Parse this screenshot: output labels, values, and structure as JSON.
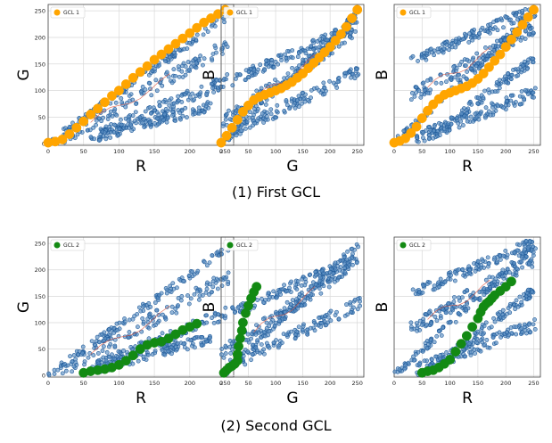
{
  "figure": {
    "captions": [
      "(1) First GCL",
      "(2) Second GCL"
    ]
  },
  "colors": {
    "scatter_face": "#5b8fc3",
    "scatter_edge": "#1f5a99",
    "trace": "#e0533a",
    "gcl1": "#ffa500",
    "gcl2": "#138a13",
    "grid": "#d9d9d9"
  },
  "chart_data": [
    {
      "type": "scatter",
      "panel": "1a",
      "xlabel": "R",
      "ylabel": "G",
      "xlim": [
        0,
        262
      ],
      "ylim": [
        -3,
        262
      ],
      "xticks": [
        0,
        50,
        100,
        150,
        200,
        250
      ],
      "yticks": [
        0,
        50,
        100,
        150,
        200,
        250
      ],
      "grid": true,
      "legend_position": "top-left",
      "series": [
        {
          "name": "GCL 1",
          "color": "#ffa500",
          "x": [
            0,
            10,
            20,
            30,
            40,
            50,
            60,
            70,
            80,
            90,
            100,
            110,
            120,
            130,
            140,
            150,
            160,
            170,
            180,
            190,
            200,
            210,
            220,
            230,
            240,
            250
          ],
          "y": [
            2,
            4,
            8,
            18,
            30,
            42,
            55,
            66,
            78,
            90,
            100,
            112,
            124,
            135,
            146,
            158,
            168,
            178,
            188,
            198,
            208,
            218,
            228,
            236,
            244,
            252
          ]
        }
      ]
    },
    {
      "type": "scatter",
      "panel": "1b",
      "xlabel": "G",
      "ylabel": "B",
      "xlim": [
        0,
        262
      ],
      "ylim": [
        -3,
        262
      ],
      "xticks": [
        0,
        50,
        100,
        150,
        200,
        250
      ],
      "yticks": [],
      "grid": true,
      "legend_position": "top-left",
      "series": [
        {
          "name": "GCL 1",
          "color": "#ffa500",
          "x": [
            0,
            10,
            20,
            30,
            40,
            50,
            60,
            70,
            80,
            90,
            100,
            110,
            120,
            130,
            140,
            150,
            160,
            170,
            180,
            190,
            200,
            210,
            220,
            230,
            240,
            250
          ],
          "y": [
            2,
            15,
            30,
            45,
            60,
            72,
            82,
            88,
            92,
            96,
            100,
            104,
            110,
            116,
            124,
            132,
            142,
            152,
            162,
            172,
            182,
            194,
            206,
            220,
            236,
            252
          ]
        }
      ]
    },
    {
      "type": "scatter",
      "panel": "1c",
      "xlabel": "R",
      "ylabel": "B",
      "xlim": [
        0,
        262
      ],
      "ylim": [
        -3,
        262
      ],
      "xticks": [
        0,
        50,
        100,
        150,
        200,
        250
      ],
      "yticks": [],
      "grid": true,
      "legend_position": "top-left",
      "series": [
        {
          "name": "GCL 1",
          "color": "#ffa500",
          "x": [
            0,
            10,
            20,
            30,
            40,
            50,
            60,
            70,
            80,
            90,
            100,
            110,
            120,
            130,
            140,
            150,
            160,
            170,
            180,
            190,
            200,
            210,
            220,
            230,
            240,
            250
          ],
          "y": [
            2,
            5,
            10,
            20,
            32,
            48,
            62,
            74,
            84,
            92,
            96,
            100,
            104,
            108,
            114,
            122,
            132,
            144,
            156,
            168,
            182,
            196,
            210,
            224,
            238,
            252
          ]
        }
      ]
    },
    {
      "type": "scatter",
      "panel": "2a",
      "xlabel": "R",
      "ylabel": "G",
      "xlim": [
        0,
        262
      ],
      "ylim": [
        -3,
        262
      ],
      "xticks": [
        0,
        50,
        100,
        150,
        200,
        250
      ],
      "yticks": [
        0,
        50,
        100,
        150,
        200,
        250
      ],
      "grid": true,
      "legend_position": "top-left",
      "series": [
        {
          "name": "GCL 2",
          "color": "#138a13",
          "x": [
            50,
            60,
            70,
            80,
            90,
            100,
            110,
            120,
            130,
            140,
            150,
            160,
            170,
            180,
            190,
            200,
            210
          ],
          "y": [
            5,
            8,
            10,
            12,
            15,
            20,
            28,
            38,
            50,
            58,
            62,
            64,
            70,
            78,
            86,
            92,
            98
          ]
        }
      ]
    },
    {
      "type": "scatter",
      "panel": "2b",
      "xlabel": "G",
      "ylabel": "B",
      "xlim": [
        0,
        262
      ],
      "ylim": [
        -3,
        262
      ],
      "xticks": [
        0,
        50,
        100,
        150,
        200,
        250
      ],
      "yticks": [],
      "grid": true,
      "legend_position": "top-left",
      "series": [
        {
          "name": "GCL 2",
          "color": "#138a13",
          "x": [
            5,
            10,
            15,
            20,
            25,
            30,
            30,
            32,
            35,
            38,
            40,
            45,
            50,
            55,
            60,
            65
          ],
          "y": [
            5,
            10,
            15,
            18,
            22,
            28,
            40,
            55,
            70,
            85,
            100,
            118,
            132,
            146,
            158,
            168
          ]
        }
      ]
    },
    {
      "type": "scatter",
      "panel": "2c",
      "xlabel": "R",
      "ylabel": "B",
      "xlim": [
        0,
        262
      ],
      "ylim": [
        -3,
        262
      ],
      "xticks": [
        0,
        50,
        100,
        150,
        200,
        250
      ],
      "yticks": [],
      "grid": true,
      "legend_position": "top-left",
      "series": [
        {
          "name": "GCL 2",
          "color": "#138a13",
          "x": [
            50,
            60,
            70,
            80,
            90,
            100,
            110,
            120,
            130,
            140,
            150,
            155,
            160,
            165,
            170,
            175,
            180,
            190,
            200,
            210
          ],
          "y": [
            5,
            8,
            10,
            15,
            22,
            30,
            45,
            60,
            75,
            92,
            108,
            120,
            130,
            136,
            140,
            146,
            152,
            160,
            168,
            178
          ]
        }
      ]
    }
  ]
}
